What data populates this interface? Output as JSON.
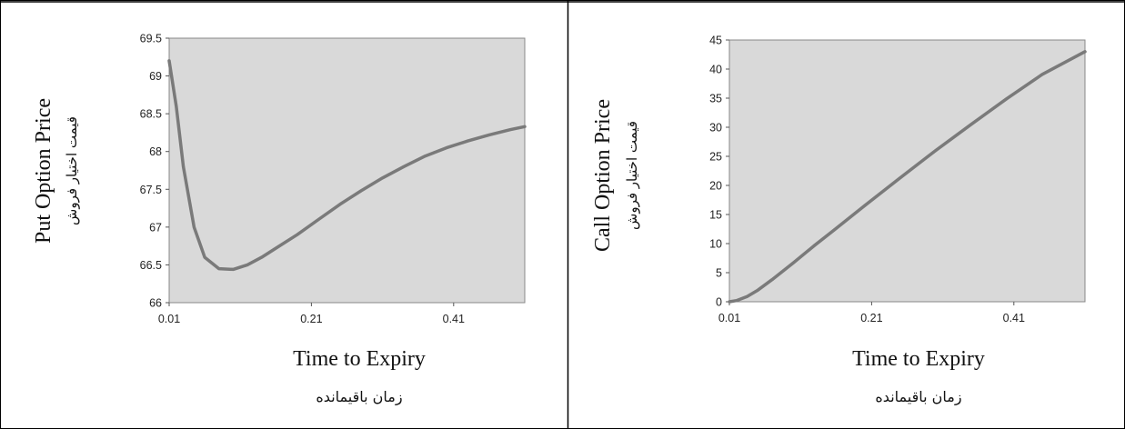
{
  "chart_data": [
    {
      "type": "line",
      "ylabel": "Put Option Price",
      "ylabel_fa": "قیمت اختیار فروش",
      "xlabel": "Time to Expiry",
      "xlabel_fa": "زمان باقیمانده",
      "xlim": [
        0.01,
        0.51
      ],
      "ylim": [
        66,
        69.5
      ],
      "xticks": [
        "0.01",
        "0.21",
        "0.41"
      ],
      "yticks": [
        "66",
        "66.5",
        "67",
        "67.5",
        "68",
        "68.5",
        "69",
        "69.5"
      ],
      "grid": false,
      "line_color": "#7a7a7a",
      "plot_bg": "#d9d9d9",
      "series": [
        {
          "x": [
            0.01,
            0.02,
            0.03,
            0.045,
            0.06,
            0.08,
            0.1,
            0.12,
            0.14,
            0.16,
            0.19,
            0.22,
            0.25,
            0.28,
            0.31,
            0.34,
            0.37,
            0.4,
            0.43,
            0.46,
            0.49,
            0.51
          ],
          "y": [
            69.2,
            68.6,
            67.8,
            67.0,
            66.6,
            66.45,
            66.44,
            66.5,
            66.6,
            66.72,
            66.9,
            67.1,
            67.3,
            67.48,
            67.65,
            67.8,
            67.94,
            68.05,
            68.14,
            68.22,
            68.29,
            68.33
          ]
        }
      ]
    },
    {
      "type": "line",
      "ylabel": "Call Option Price",
      "ylabel_fa": "قیمت اختیار فروش",
      "xlabel": "Time to Expiry",
      "xlabel_fa": "زمان باقیمانده",
      "xlim": [
        0.01,
        0.51
      ],
      "ylim": [
        0,
        45
      ],
      "xticks": [
        "0.01",
        "0.21",
        "0.41"
      ],
      "yticks": [
        "0",
        "5",
        "10",
        "15",
        "20",
        "25",
        "30",
        "35",
        "40",
        "45"
      ],
      "grid": false,
      "line_color": "#7a7a7a",
      "plot_bg": "#d9d9d9",
      "series": [
        {
          "x": [
            0.01,
            0.02,
            0.035,
            0.05,
            0.07,
            0.1,
            0.13,
            0.16,
            0.2,
            0.25,
            0.3,
            0.35,
            0.4,
            0.45,
            0.51
          ],
          "y": [
            0,
            0.2,
            0.9,
            2.0,
            3.8,
            6.7,
            9.7,
            12.6,
            16.5,
            21.3,
            26.0,
            30.5,
            34.9,
            39.1,
            43.0
          ]
        }
      ]
    }
  ]
}
